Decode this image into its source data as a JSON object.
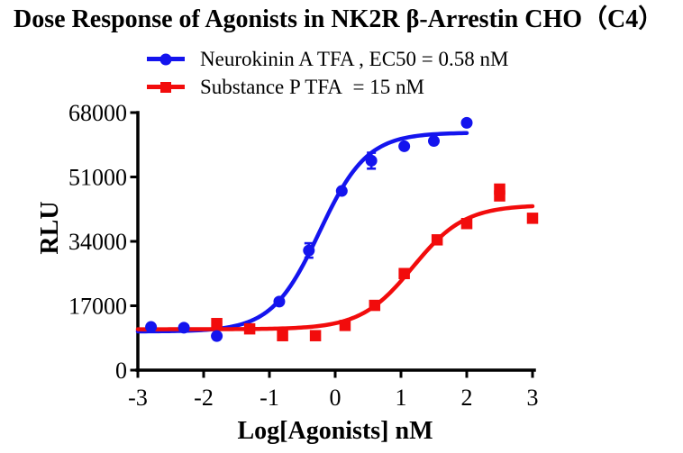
{
  "title": "Dose Response of Agonists in NK2R β-Arrestin CHO（C4）",
  "colors": {
    "blue": "#1414ee",
    "red": "#f20c0c",
    "axis": "#000000",
    "background": "#ffffff"
  },
  "legend": [
    {
      "label": "Neurokinin A TFA , EC50 = 0.58 nM",
      "marker": "circle",
      "color": "#1414ee"
    },
    {
      "label": "Substance P TFA  = 15 nM",
      "marker": "square",
      "color": "#f20c0c"
    }
  ],
  "chart_data": {
    "type": "scatter",
    "title": "Dose Response of Agonists in NK2R β-Arrestin CHO（C4）",
    "xlabel": "Log[Agonists] nM",
    "ylabel": "RLU",
    "xlim": [
      -3,
      3
    ],
    "ylim": [
      0,
      68000
    ],
    "x_ticks": [
      -3,
      -2,
      -1,
      0,
      1,
      2,
      3
    ],
    "y_ticks": [
      0,
      17000,
      34000,
      51000,
      68000
    ],
    "grid": false,
    "legend_position": "top",
    "series": [
      {
        "name": "Neurokinin A TFA",
        "ec50_label": "EC50 = 0.58 nM",
        "marker": "circle",
        "color": "#1414ee",
        "points": [
          [
            -2.8,
            11400
          ],
          [
            -2.3,
            11200
          ],
          [
            -1.8,
            9000
          ],
          [
            -0.85,
            18100
          ],
          [
            -0.4,
            31600
          ],
          [
            0.1,
            47300
          ],
          [
            0.55,
            55300
          ],
          [
            1.05,
            59100
          ],
          [
            1.5,
            60500
          ],
          [
            2.0,
            65300
          ]
        ],
        "error_bars": [
          [
            -0.4,
            31600,
            1900
          ],
          [
            0.55,
            55300,
            2100
          ]
        ],
        "fit": {
          "bottom": 10200,
          "top": 62700,
          "logec50": -0.24,
          "hill": 1.2,
          "x_range": [
            -3,
            2.0
          ]
        }
      },
      {
        "name": "Substance P TFA",
        "ec50_label": "EC50 = 15 nM",
        "marker": "square",
        "color": "#f20c0c",
        "points": [
          [
            -1.8,
            12300
          ],
          [
            -1.3,
            10900
          ],
          [
            -0.8,
            9100
          ],
          [
            -0.3,
            9100
          ],
          [
            0.15,
            11800
          ],
          [
            0.6,
            17100
          ],
          [
            1.05,
            25500
          ],
          [
            1.55,
            34400
          ],
          [
            2.0,
            38700
          ],
          [
            2.5,
            47800
          ],
          [
            2.5,
            46000
          ],
          [
            3.0,
            40100
          ]
        ],
        "error_bars": [],
        "fit": {
          "bottom": 10800,
          "top": 43600,
          "logec50": 1.18,
          "hill": 1.1,
          "x_range": [
            -3,
            3.0
          ]
        }
      }
    ]
  }
}
